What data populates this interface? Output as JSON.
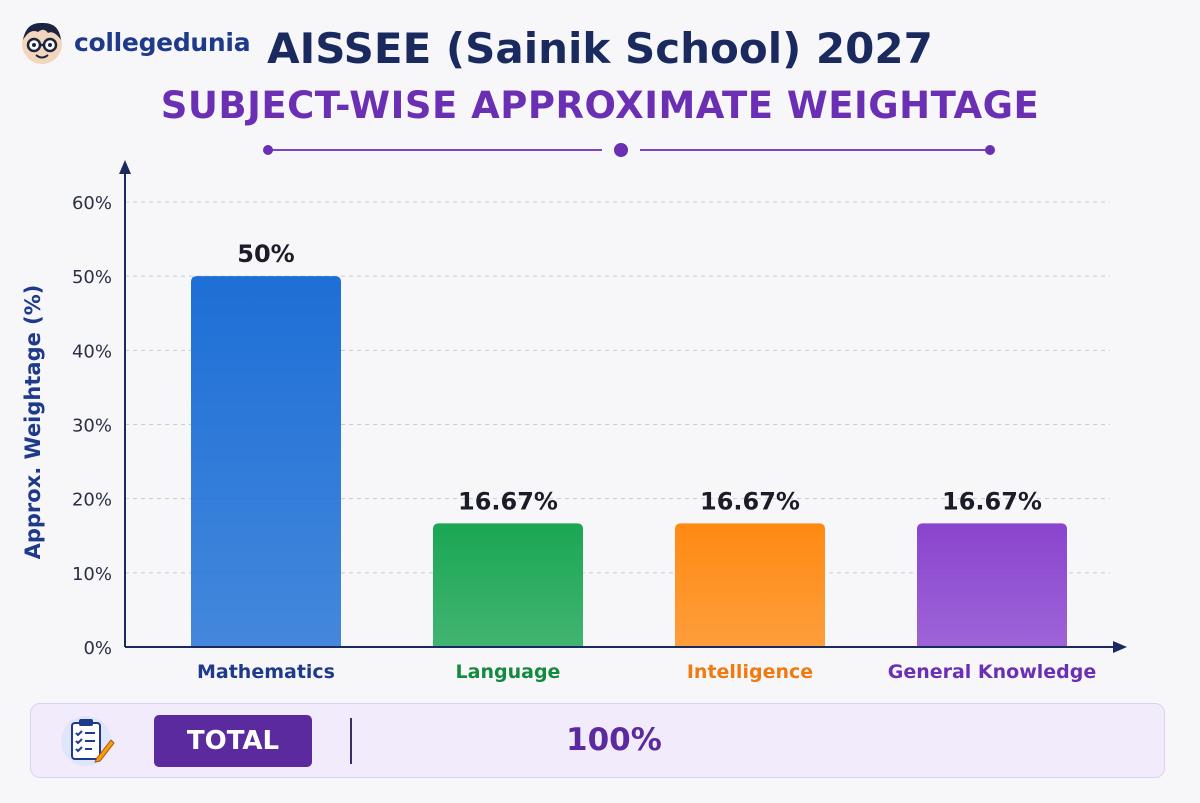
{
  "brand": {
    "name": "collegedunia"
  },
  "header": {
    "title": "AISSEE (Sainik School) 2027",
    "subtitle": "SUBJECT-WISE APPROXIMATE WEIGHTAGE"
  },
  "colors": {
    "title": "#1a2a5e",
    "subtitle": "#6b2fb3",
    "axis": "#1a2a5e",
    "mathematics": "#1d6fd6",
    "language": "#1aa653",
    "intelligence": "#ff8a12",
    "general_knowledge": "#8a44cf"
  },
  "chart_data": {
    "type": "bar",
    "title": "SUBJECT-WISE APPROXIMATE WEIGHTAGE",
    "xlabel": "",
    "ylabel": "Approx. Weightage (%)",
    "categories": [
      "Mathematics",
      "Language",
      "Intelligence",
      "General Knowledge"
    ],
    "values": [
      50,
      16.67,
      16.67,
      16.67
    ],
    "data_labels": [
      "50%",
      "16.67%",
      "16.67%",
      "16.67%"
    ],
    "bar_colors": [
      "#1d6fd6",
      "#1aa653",
      "#ff8a12",
      "#8a44cf"
    ],
    "label_colors": [
      "#1e3a8a",
      "#138a3e",
      "#f07a10",
      "#6b2fb3"
    ],
    "ylim": [
      0,
      60
    ],
    "yticks": [
      0,
      10,
      20,
      30,
      40,
      50,
      60
    ],
    "ytick_labels": [
      "0%",
      "10%",
      "20%",
      "30%",
      "40%",
      "50%",
      "60%"
    ],
    "grid": true,
    "legend": "none"
  },
  "summary": {
    "total_label": "TOTAL",
    "total_value": "100%"
  },
  "icons": [
    "mascot-logo-icon",
    "clipboard-checklist-icon"
  ]
}
